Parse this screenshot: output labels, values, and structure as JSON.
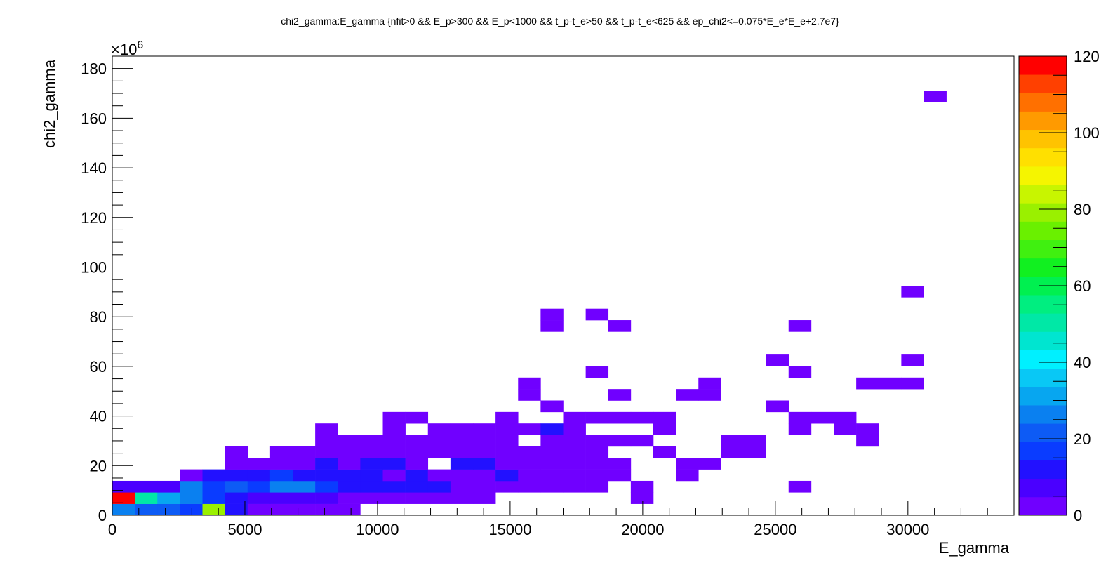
{
  "chart_data": {
    "type": "heatmap",
    "title": "chi2_gamma:E_gamma {nfit>0 && E_p>300 && E_p<1000 && t_p-t_e>50 && t_p-t_e<625 && ep_chi2<=0.075*E_e*E_e+2.7e7}",
    "xlabel": "E_gamma",
    "ylabel": "chi2_gamma",
    "y_multiplier_label": "×10",
    "y_multiplier_exp": "6",
    "xlim": [
      0,
      34000
    ],
    "ylim": [
      0,
      185
    ],
    "x_ticks": [
      0,
      5000,
      10000,
      15000,
      20000,
      25000,
      30000
    ],
    "x_tick_labels": [
      "0",
      "5000",
      "10000",
      "15000",
      "20000",
      "25000",
      "30000"
    ],
    "y_ticks": [
      0,
      20,
      40,
      60,
      80,
      100,
      120,
      140,
      160,
      180
    ],
    "y_tick_labels": [
      "0",
      "20",
      "40",
      "60",
      "80",
      "100",
      "120",
      "140",
      "160",
      "180"
    ],
    "x_bin_width": 850,
    "y_bin_height": 4.625,
    "z_range": [
      0,
      120
    ],
    "z_ticks": [
      0,
      20,
      40,
      60,
      80,
      100,
      120
    ],
    "z_tick_labels": [
      "0",
      "20",
      "40",
      "60",
      "80",
      "100",
      "120"
    ],
    "palette": [
      "#7000ff",
      "#4a00ff",
      "#2211ff",
      "#0a3cff",
      "#0d5bf5",
      "#0a80f0",
      "#07a6f0",
      "#09c8f5",
      "#00f0ff",
      "#00e5d0",
      "#00e8a6",
      "#00ee80",
      "#00f050",
      "#11f020",
      "#40f010",
      "#6af000",
      "#9af000",
      "#c8f500",
      "#f5f500",
      "#ffe000",
      "#ffc300",
      "#ff9a00",
      "#ff7000",
      "#ff4000",
      "#ff0000"
    ],
    "bins": [
      [
        0,
        0,
        25
      ],
      [
        1,
        0,
        20
      ],
      [
        2,
        0,
        20
      ],
      [
        3,
        0,
        15
      ],
      [
        4,
        0,
        80
      ],
      [
        5,
        0,
        10
      ],
      [
        6,
        0,
        3
      ],
      [
        7,
        0,
        3
      ],
      [
        8,
        0,
        3
      ],
      [
        9,
        0,
        3
      ],
      [
        10,
        0,
        3
      ],
      [
        0,
        1,
        120
      ],
      [
        1,
        1,
        50
      ],
      [
        2,
        1,
        30
      ],
      [
        3,
        1,
        25
      ],
      [
        4,
        1,
        15
      ],
      [
        5,
        1,
        10
      ],
      [
        6,
        1,
        8
      ],
      [
        7,
        1,
        8
      ],
      [
        8,
        1,
        8
      ],
      [
        9,
        1,
        8
      ],
      [
        10,
        1,
        3
      ],
      [
        11,
        1,
        3
      ],
      [
        12,
        1,
        3
      ],
      [
        13,
        1,
        3
      ],
      [
        14,
        1,
        3
      ],
      [
        15,
        1,
        3
      ],
      [
        16,
        1,
        3
      ],
      [
        23,
        1,
        3
      ],
      [
        0,
        2,
        8
      ],
      [
        1,
        2,
        8
      ],
      [
        2,
        2,
        8
      ],
      [
        3,
        2,
        25
      ],
      [
        4,
        2,
        15
      ],
      [
        5,
        2,
        20
      ],
      [
        6,
        2,
        15
      ],
      [
        7,
        2,
        25
      ],
      [
        8,
        2,
        25
      ],
      [
        9,
        2,
        15
      ],
      [
        10,
        2,
        10
      ],
      [
        11,
        2,
        10
      ],
      [
        12,
        2,
        10
      ],
      [
        13,
        2,
        10
      ],
      [
        14,
        2,
        10
      ],
      [
        15,
        2,
        3
      ],
      [
        16,
        2,
        3
      ],
      [
        17,
        2,
        3
      ],
      [
        18,
        2,
        3
      ],
      [
        19,
        2,
        3
      ],
      [
        20,
        2,
        3
      ],
      [
        21,
        2,
        3
      ],
      [
        23,
        2,
        3
      ],
      [
        30,
        2,
        3
      ],
      [
        3,
        3,
        3
      ],
      [
        4,
        3,
        10
      ],
      [
        5,
        3,
        10
      ],
      [
        6,
        3,
        10
      ],
      [
        7,
        3,
        15
      ],
      [
        8,
        3,
        10
      ],
      [
        9,
        3,
        10
      ],
      [
        10,
        3,
        10
      ],
      [
        11,
        3,
        10
      ],
      [
        12,
        3,
        3
      ],
      [
        13,
        3,
        10
      ],
      [
        14,
        3,
        3
      ],
      [
        15,
        3,
        3
      ],
      [
        16,
        3,
        3
      ],
      [
        17,
        3,
        10
      ],
      [
        18,
        3,
        3
      ],
      [
        19,
        3,
        3
      ],
      [
        20,
        3,
        3
      ],
      [
        21,
        3,
        3
      ],
      [
        22,
        3,
        3
      ],
      [
        25,
        3,
        3
      ],
      [
        5,
        4,
        3
      ],
      [
        6,
        4,
        3
      ],
      [
        7,
        4,
        3
      ],
      [
        8,
        4,
        3
      ],
      [
        9,
        4,
        10
      ],
      [
        10,
        4,
        3
      ],
      [
        11,
        4,
        10
      ],
      [
        12,
        4,
        10
      ],
      [
        13,
        4,
        3
      ],
      [
        15,
        4,
        10
      ],
      [
        16,
        4,
        10
      ],
      [
        17,
        4,
        3
      ],
      [
        18,
        4,
        3
      ],
      [
        19,
        4,
        3
      ],
      [
        20,
        4,
        3
      ],
      [
        21,
        4,
        3
      ],
      [
        22,
        4,
        3
      ],
      [
        25,
        4,
        3
      ],
      [
        26,
        4,
        3
      ],
      [
        5,
        5,
        3
      ],
      [
        7,
        5,
        3
      ],
      [
        8,
        5,
        3
      ],
      [
        9,
        5,
        3
      ],
      [
        10,
        5,
        3
      ],
      [
        11,
        5,
        3
      ],
      [
        12,
        5,
        3
      ],
      [
        13,
        5,
        3
      ],
      [
        14,
        5,
        3
      ],
      [
        15,
        5,
        3
      ],
      [
        16,
        5,
        3
      ],
      [
        17,
        5,
        3
      ],
      [
        18,
        5,
        3
      ],
      [
        19,
        5,
        3
      ],
      [
        20,
        5,
        3
      ],
      [
        21,
        5,
        3
      ],
      [
        24,
        5,
        3
      ],
      [
        27,
        5,
        3
      ],
      [
        28,
        5,
        3
      ],
      [
        9,
        6,
        3
      ],
      [
        10,
        6,
        3
      ],
      [
        11,
        6,
        3
      ],
      [
        12,
        6,
        3
      ],
      [
        13,
        6,
        3
      ],
      [
        14,
        6,
        3
      ],
      [
        15,
        6,
        3
      ],
      [
        16,
        6,
        3
      ],
      [
        17,
        6,
        3
      ],
      [
        19,
        6,
        3
      ],
      [
        20,
        6,
        3
      ],
      [
        21,
        6,
        3
      ],
      [
        22,
        6,
        3
      ],
      [
        23,
        6,
        3
      ],
      [
        27,
        6,
        3
      ],
      [
        28,
        6,
        3
      ],
      [
        33,
        6,
        3
      ],
      [
        9,
        7,
        3
      ],
      [
        12,
        7,
        3
      ],
      [
        14,
        7,
        3
      ],
      [
        15,
        7,
        3
      ],
      [
        16,
        7,
        3
      ],
      [
        17,
        7,
        3
      ],
      [
        18,
        7,
        3
      ],
      [
        19,
        7,
        10
      ],
      [
        20,
        7,
        3
      ],
      [
        24,
        7,
        3
      ],
      [
        30,
        7,
        3
      ],
      [
        32,
        7,
        3
      ],
      [
        33,
        7,
        3
      ],
      [
        12,
        8,
        3
      ],
      [
        13,
        8,
        3
      ],
      [
        17,
        8,
        3
      ],
      [
        20,
        8,
        3
      ],
      [
        21,
        8,
        3
      ],
      [
        22,
        8,
        3
      ],
      [
        23,
        8,
        3
      ],
      [
        24,
        8,
        3
      ],
      [
        30,
        8,
        3
      ],
      [
        31,
        8,
        3
      ],
      [
        32,
        8,
        3
      ],
      [
        19,
        9,
        3
      ],
      [
        29,
        9,
        3
      ],
      [
        18,
        10,
        3
      ],
      [
        22,
        10,
        3
      ],
      [
        25,
        10,
        3
      ],
      [
        26,
        10,
        3
      ],
      [
        18,
        11,
        3
      ],
      [
        26,
        11,
        3
      ],
      [
        33,
        11,
        3
      ],
      [
        34,
        11,
        3
      ],
      [
        35,
        11,
        3
      ],
      [
        21,
        12,
        3
      ],
      [
        30,
        12,
        3
      ],
      [
        29,
        13,
        3
      ],
      [
        35,
        13,
        3
      ],
      [
        19,
        16,
        3
      ],
      [
        22,
        16,
        3
      ],
      [
        30,
        16,
        3
      ],
      [
        19,
        17,
        3
      ],
      [
        21,
        17,
        3
      ],
      [
        35,
        19,
        3
      ],
      [
        36,
        36,
        3
      ]
    ]
  }
}
